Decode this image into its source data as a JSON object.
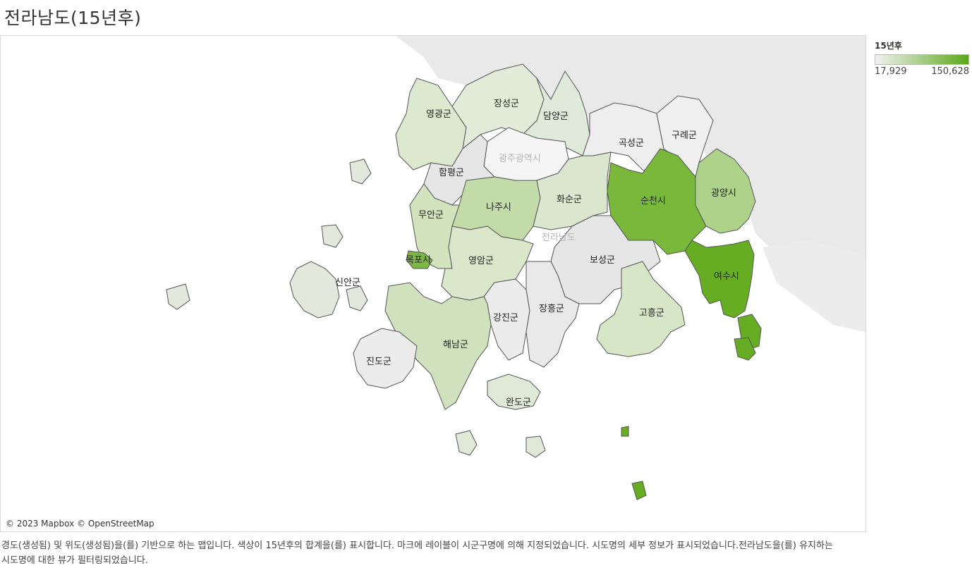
{
  "title": "전라남도(15년후)",
  "legend": {
    "title": "15년후",
    "min": "17,929",
    "max": "150,628",
    "color_low": "#f2f2f2",
    "color_high": "#5ba71a"
  },
  "map": {
    "attribution": "© 2023 Mapbox © OpenStreetMap",
    "background_label_city": "광주광역시",
    "background_label_province": "전라남도",
    "regions": [
      {
        "name": "영광군",
        "color": "#dde9cf"
      },
      {
        "name": "장성군",
        "color": "#e3ecd8"
      },
      {
        "name": "담양군",
        "color": "#e0eadb"
      },
      {
        "name": "곡성군",
        "color": "#eeeeee"
      },
      {
        "name": "구례군",
        "color": "#f0f0f0"
      },
      {
        "name": "함평군",
        "color": "#e6e6e6"
      },
      {
        "name": "나주시",
        "color": "#c2dba9"
      },
      {
        "name": "화순군",
        "color": "#dae6cd"
      },
      {
        "name": "순천시",
        "color": "#79b83a"
      },
      {
        "name": "광양시",
        "color": "#aed28a"
      },
      {
        "name": "무안군",
        "color": "#d2e3bd"
      },
      {
        "name": "목포시",
        "color": "#7cb843"
      },
      {
        "name": "영암군",
        "color": "#dae7cb"
      },
      {
        "name": "보성군",
        "color": "#e6e6e6"
      },
      {
        "name": "여수시",
        "color": "#66ad24"
      },
      {
        "name": "신안군",
        "color": "#e2e8dc"
      },
      {
        "name": "강진군",
        "color": "#ececec"
      },
      {
        "name": "장흥군",
        "color": "#e9e9e9"
      },
      {
        "name": "고흥군",
        "color": "#d6e6c6"
      },
      {
        "name": "해남군",
        "color": "#cfe2bd"
      },
      {
        "name": "진도군",
        "color": "#ececec"
      },
      {
        "name": "완도군",
        "color": "#e0e8d8"
      }
    ]
  },
  "caption": "경도(생성됨) 및 위도(생성됨)을(를) 기반으로 하는 맵입니다. 색상이 15년후의 합계을(를) 표시합니다. 마크에 레이블이 시군구명에 의해 지정되었습니다. 시도명의 세부 정보가 표시되었습니다.전라남도을(를) 유지하는 시도명에 대한 뷰가 필터링되었습니다."
}
